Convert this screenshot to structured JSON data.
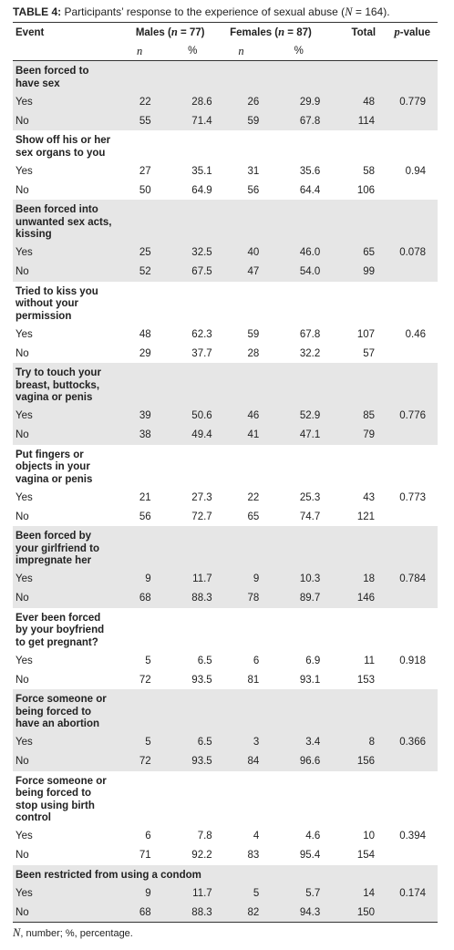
{
  "title": [
    "TABLE 4:",
    " Participants’ response to the experience of sexual abuse (",
    "N",
    " = 164)."
  ],
  "table": {
    "header": {
      "event": "Event",
      "males": [
        "Males (",
        "n",
        " = 77)"
      ],
      "females": [
        "Females (",
        "n",
        " = 87)"
      ],
      "total": "Total",
      "p_value": [
        "p",
        "-value"
      ]
    },
    "subheader": [
      "n",
      "%",
      "n",
      "%"
    ],
    "groups": [
      {
        "event": "Been forced to have sex",
        "rows": [
          [
            "Yes",
            "22",
            "28.6",
            "26",
            "29.9",
            "48",
            "0.779"
          ],
          [
            "No",
            "55",
            "71.4",
            "59",
            "67.8",
            "114"
          ]
        ]
      },
      {
        "event": "Show off his or her sex organs to you",
        "rows": [
          [
            "Yes",
            "27",
            "35.1",
            "31",
            "35.6",
            "58",
            "0.94"
          ],
          [
            "No",
            "50",
            "64.9",
            "56",
            "64.4",
            "106"
          ]
        ]
      },
      {
        "event": "Been forced into unwanted sex acts, kissing",
        "rows": [
          [
            "Yes",
            "25",
            "32.5",
            "40",
            "46.0",
            "65",
            "0.078"
          ],
          [
            "No",
            "52",
            "67.5",
            "47",
            "54.0",
            "99"
          ]
        ]
      },
      {
        "event": "Tried to kiss you without your permission",
        "rows": [
          [
            "Yes",
            "48",
            "62.3",
            "59",
            "67.8",
            "107",
            "0.46"
          ],
          [
            "No",
            "29",
            "37.7",
            "28",
            "32.2",
            "57"
          ]
        ]
      },
      {
        "event": "Try to touch your breast, buttocks, vagina or penis",
        "rows": [
          [
            "Yes",
            "39",
            "50.6",
            "46",
            "52.9",
            "85",
            "0.776"
          ],
          [
            "No",
            "38",
            "49.4",
            "41",
            "47.1",
            "79"
          ]
        ]
      },
      {
        "event": "Put fingers or objects in your vagina or penis",
        "rows": [
          [
            "Yes",
            "21",
            "27.3",
            "22",
            "25.3",
            "43",
            "0.773"
          ],
          [
            "No",
            "56",
            "72.7",
            "65",
            "74.7",
            "121"
          ]
        ]
      },
      {
        "event": "Been forced by your girlfriend to impregnate her",
        "rows": [
          [
            "Yes",
            "9",
            "11.7",
            "9",
            "10.3",
            "18",
            "0.784"
          ],
          [
            "No",
            "68",
            "88.3",
            "78",
            "89.7",
            "146"
          ]
        ]
      },
      {
        "event": "Ever been forced by your boyfriend to get pregnant?",
        "rows": [
          [
            "Yes",
            "5",
            "6.5",
            "6",
            "6.9",
            "11",
            "0.918"
          ],
          [
            "No",
            "72",
            "93.5",
            "81",
            "93.1",
            "153"
          ]
        ]
      },
      {
        "event": "Force someone or being forced to have an abortion",
        "rows": [
          [
            "Yes",
            "5",
            "6.5",
            "3",
            "3.4",
            "8",
            "0.366"
          ],
          [
            "No",
            "72",
            "93.5",
            "84",
            "96.6",
            "156"
          ]
        ]
      },
      {
        "event": "Force someone or being forced to stop using birth control",
        "rows": [
          [
            "Yes",
            "6",
            "7.8",
            "4",
            "4.6",
            "10",
            "0.394"
          ],
          [
            "No",
            "71",
            "92.2",
            "83",
            "95.4",
            "154"
          ]
        ]
      },
      {
        "event": "Been restricted from using a condom",
        "rows": [
          [
            "Yes",
            "9",
            "11.7",
            "5",
            "5.7",
            "14",
            "0.174"
          ],
          [
            "No",
            "68",
            "88.3",
            "82",
            "94.3",
            "150"
          ]
        ]
      }
    ]
  },
  "footnote": [
    "N",
    ", number; %, percentage."
  ]
}
